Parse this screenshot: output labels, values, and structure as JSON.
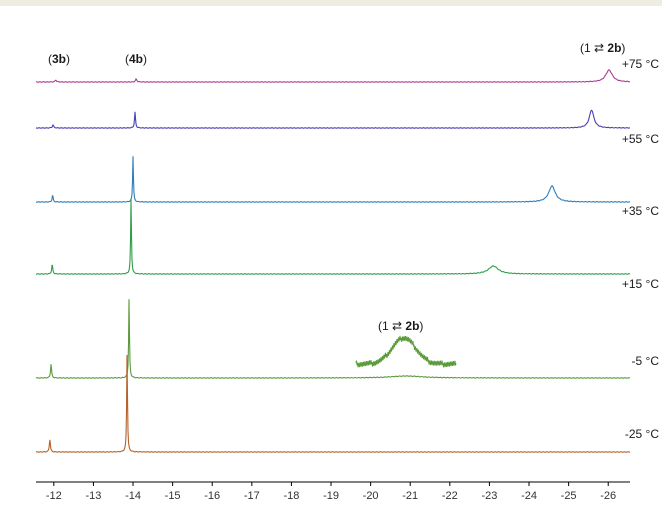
{
  "chart_data": {
    "type": "line",
    "title": "",
    "xlabel": "",
    "ylabel": "",
    "x_reversed": true,
    "xlim": [
      -11.55,
      -26.55
    ],
    "x_ticks": [
      -12,
      -13,
      -14,
      -15,
      -16,
      -17,
      -18,
      -19,
      -20,
      -21,
      -22,
      -23,
      -24,
      -25,
      -26
    ],
    "x_tick_labels": [
      "-12",
      "-13",
      "-14",
      "-15",
      "-16",
      "-17",
      "-18",
      "-19",
      "-20",
      "-21",
      "-22",
      "-23",
      "-24",
      "-25",
      "-26"
    ],
    "grid": false,
    "legend": "none",
    "series": [
      {
        "name": "+75 °C",
        "color": "#b03a93",
        "peaks": [
          {
            "x": -12.05,
            "h": 2,
            "w": 0.02
          },
          {
            "x": -14.08,
            "h": 3,
            "w": 0.02
          },
          {
            "x": -26.02,
            "h": 12,
            "w": 0.1
          }
        ]
      },
      {
        "name": "+55 °C",
        "color": "#4a3fb4",
        "peaks": [
          {
            "x": -11.98,
            "h": 3,
            "w": 0.02
          },
          {
            "x": -14.05,
            "h": 16,
            "w": 0.015
          },
          {
            "x": -25.58,
            "h": 18,
            "w": 0.07
          }
        ]
      },
      {
        "name": "+35 °C",
        "color": "#2e7dbd",
        "peaks": [
          {
            "x": -11.97,
            "h": 7,
            "w": 0.015
          },
          {
            "x": -14.0,
            "h": 46,
            "w": 0.012
          },
          {
            "x": -24.58,
            "h": 16,
            "w": 0.1
          }
        ]
      },
      {
        "name": "+15 °C",
        "color": "#2e9e4a",
        "peaks": [
          {
            "x": -11.96,
            "h": 10,
            "w": 0.015
          },
          {
            "x": -13.95,
            "h": 76,
            "w": 0.012
          },
          {
            "x": -23.1,
            "h": 8,
            "w": 0.15
          }
        ]
      },
      {
        "name": "-5 °C",
        "color": "#5a9a3a",
        "peaks": [
          {
            "x": -11.93,
            "h": 14,
            "w": 0.015
          },
          {
            "x": -13.9,
            "h": 80,
            "w": 0.012
          },
          {
            "x": -20.9,
            "h": 2,
            "w": 0.5
          }
        ]
      },
      {
        "name": "-25 °C",
        "color": "#b5612a",
        "peaks": [
          {
            "x": -11.9,
            "h": 13,
            "w": 0.015
          },
          {
            "x": -13.85,
            "h": 100,
            "w": 0.012
          }
        ]
      }
    ],
    "annotations": [
      {
        "text_open": "(",
        "bold": "3b",
        "text_close": ")"
      },
      {
        "text_open": "(",
        "bold": "4b",
        "text_close": ")"
      },
      {
        "text_open": "(1 ⇄ ",
        "bold": "2b",
        "text_close": ")"
      },
      {
        "text_open": "(1 ⇄ ",
        "bold": "2b",
        "text_close": ")"
      }
    ],
    "inset": {
      "series": "-5 °C",
      "x_range": [
        -19.7,
        -22.2
      ],
      "peak_x": -20.9,
      "color": "#5a9a3a"
    }
  }
}
